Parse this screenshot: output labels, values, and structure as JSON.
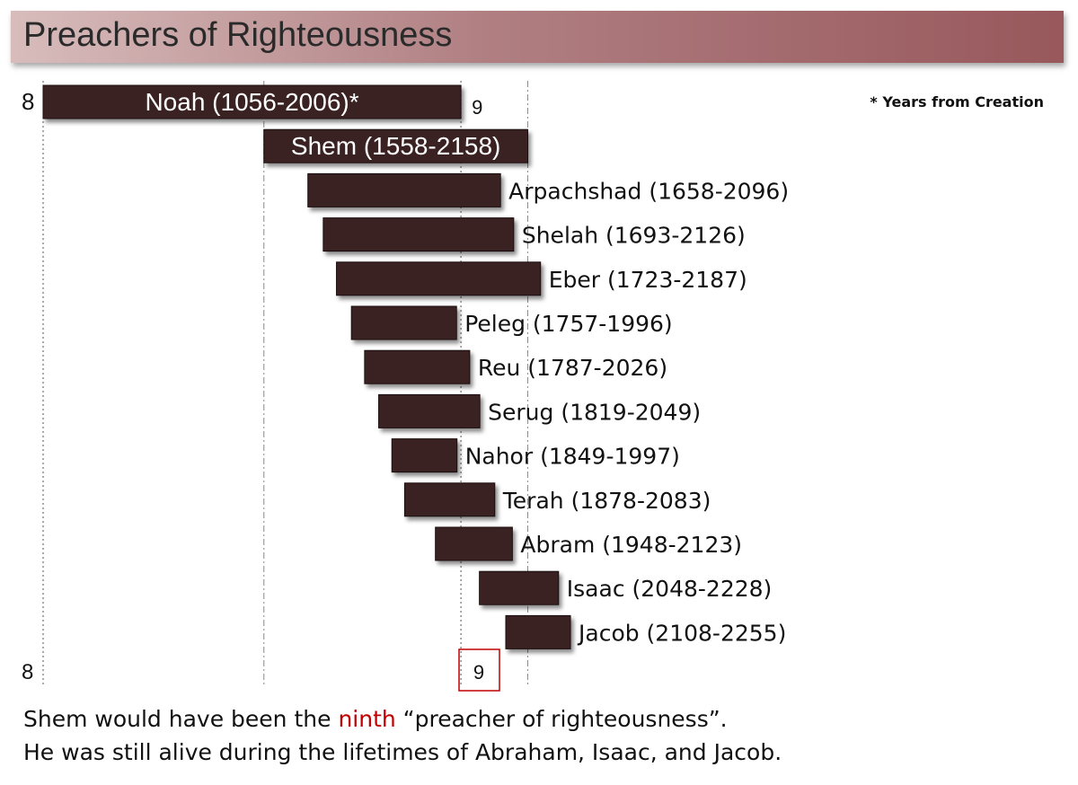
{
  "title": "Preachers of Righteousness",
  "chart_data": {
    "type": "bar",
    "subtype": "timeline-gantt",
    "note": "* Years from Creation",
    "axis_markers": {
      "top_left": "8",
      "top_right": "9",
      "bottom_left": "8",
      "bottom_right": "9"
    },
    "x_range": [
      1056,
      2255
    ],
    "reference_lines": [
      {
        "x": 1056,
        "style": "dotted",
        "color": "#555555"
      },
      {
        "x": 1558,
        "style": "dash-dot",
        "color": "#888888"
      },
      {
        "x": 2006,
        "style": "dotted",
        "color": "#555555"
      },
      {
        "x": 2158,
        "style": "dash-dot",
        "color": "#4a9fd4"
      }
    ],
    "series": [
      {
        "label": "Noah (1056-2006)*",
        "start": 1056,
        "end": 2006,
        "label_inside": true
      },
      {
        "label": "Shem (1558-2158)",
        "start": 1558,
        "end": 2158,
        "label_inside": true
      },
      {
        "label": "Arpachshad (1658-2096)",
        "start": 1658,
        "end": 2096,
        "label_inside": false
      },
      {
        "label": "Shelah (1693-2126)",
        "start": 1693,
        "end": 2126,
        "label_inside": false
      },
      {
        "label": "Eber (1723-2187)",
        "start": 1723,
        "end": 2187,
        "label_inside": false
      },
      {
        "label": "Peleg (1757-1996)",
        "start": 1757,
        "end": 1996,
        "label_inside": false
      },
      {
        "label": "Reu (1787-2026)",
        "start": 1787,
        "end": 2026,
        "label_inside": false
      },
      {
        "label": "Serug (1819-2049)",
        "start": 1819,
        "end": 2049,
        "label_inside": false
      },
      {
        "label": "Nahor (1849-1997)",
        "start": 1849,
        "end": 1997,
        "label_inside": false
      },
      {
        "label": "Terah (1878-2083)",
        "start": 1878,
        "end": 2083,
        "label_inside": false
      },
      {
        "label": "Abram (1948-2123)",
        "start": 1948,
        "end": 2123,
        "label_inside": false
      },
      {
        "label": "Isaac (2048-2228)",
        "start": 2048,
        "end": 2228,
        "label_inside": false
      },
      {
        "label": "Jacob (2108-2255)",
        "start": 2108,
        "end": 2255,
        "label_inside": false
      }
    ],
    "colors": {
      "bar": "#3a2224",
      "bar_text_inside": "#ffffff",
      "label_text": "#111111",
      "marker_box": "#c00000"
    }
  },
  "caption": {
    "line1_before": "Shem would have been the ",
    "line1_highlight": "ninth",
    "line1_after": " “preacher of righteousness”.",
    "line2": "He was still alive during the lifetimes of Abraham, Isaac, and Jacob."
  }
}
